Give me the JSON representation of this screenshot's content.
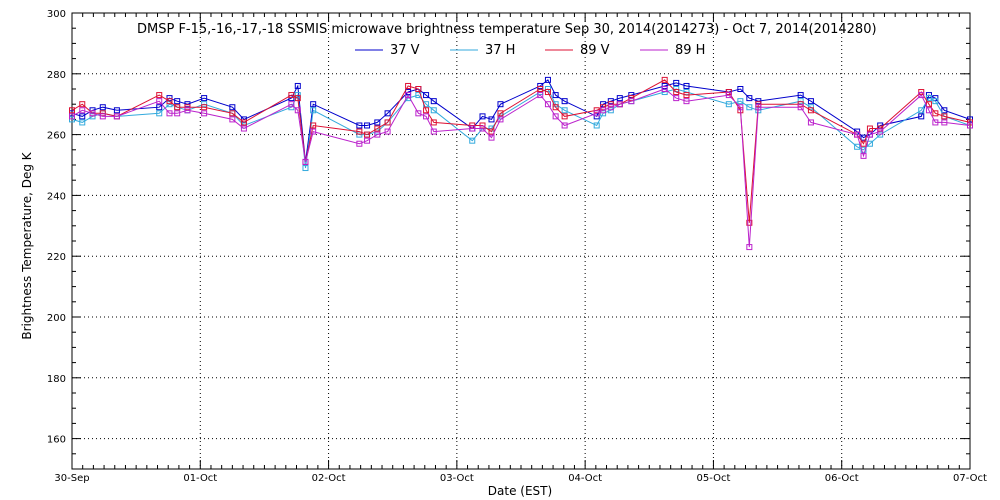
{
  "chart_data": {
    "type": "line",
    "title": "DMSP F-15,-16,-17,-18 SSMIS microwave brightness temperature Sep 30, 2014(2014273) - Oct  7, 2014(2014280)",
    "xlabel": "Date (EST)",
    "ylabel": "Brightness Temperature, Deg K",
    "x_tick_labels": [
      "30-Sep",
      "01-Oct",
      "02-Oct",
      "03-Oct",
      "04-Oct",
      "05-Oct",
      "06-Oct",
      "07-Oct"
    ],
    "xlim_days": [
      0,
      7
    ],
    "ylim": [
      150,
      300
    ],
    "y_ticks": [
      160,
      180,
      200,
      220,
      240,
      260,
      280,
      300
    ],
    "grid": true,
    "legend_placement": "top-center",
    "series": [
      {
        "name": "37 V",
        "color": "#0000cc",
        "x": [
          0.0,
          0.08,
          0.16,
          0.24,
          0.35,
          0.68,
          0.76,
          0.82,
          0.9,
          1.03,
          1.25,
          1.34,
          1.71,
          1.76,
          1.82,
          1.88,
          2.24,
          2.3,
          2.38,
          2.46,
          2.62,
          2.7,
          2.76,
          2.82,
          3.12,
          3.2,
          3.27,
          3.34,
          3.65,
          3.71,
          3.77,
          3.84,
          4.09,
          4.14,
          4.2,
          4.27,
          4.36,
          4.62,
          4.71,
          4.79,
          5.12,
          5.21,
          5.28,
          5.35,
          5.68,
          5.76,
          6.12,
          6.17,
          6.22,
          6.3,
          6.62,
          6.68,
          6.73,
          6.8,
          7.0
        ],
        "values": [
          267,
          266,
          268,
          269,
          268,
          269,
          272,
          271,
          270,
          272,
          269,
          265,
          272,
          276,
          251,
          270,
          263,
          263,
          264,
          267,
          274,
          275,
          273,
          271,
          262,
          266,
          265,
          270,
          276,
          278,
          273,
          271,
          266,
          270,
          271,
          272,
          273,
          276,
          277,
          276,
          274,
          275,
          272,
          271,
          273,
          271,
          261,
          259,
          260,
          263,
          266,
          273,
          272,
          268,
          265
        ]
      },
      {
        "name": "37 H",
        "color": "#33aadd",
        "x": [
          0.0,
          0.08,
          0.16,
          0.24,
          0.35,
          0.68,
          0.76,
          0.82,
          0.9,
          1.03,
          1.25,
          1.34,
          1.71,
          1.76,
          1.82,
          1.88,
          2.24,
          2.3,
          2.38,
          2.46,
          2.62,
          2.7,
          2.76,
          2.82,
          3.12,
          3.2,
          3.27,
          3.34,
          3.65,
          3.71,
          3.77,
          3.84,
          4.09,
          4.14,
          4.2,
          4.27,
          4.36,
          4.62,
          4.71,
          4.79,
          5.12,
          5.21,
          5.28,
          5.35,
          5.68,
          5.76,
          6.12,
          6.17,
          6.22,
          6.3,
          6.62,
          6.68,
          6.73,
          6.8,
          7.0
        ],
        "values": [
          265,
          264,
          266,
          267,
          266,
          267,
          270,
          269,
          268,
          270,
          267,
          263,
          269,
          273,
          249,
          268,
          260,
          260,
          261,
          264,
          272,
          273,
          270,
          268,
          258,
          262,
          262,
          266,
          274,
          275,
          270,
          268,
          263,
          267,
          268,
          270,
          271,
          274,
          275,
          274,
          270,
          271,
          269,
          268,
          271,
          269,
          256,
          255,
          257,
          260,
          268,
          272,
          271,
          266,
          263
        ]
      },
      {
        "name": "89 V",
        "color": "#dd1133",
        "x": [
          0.0,
          0.08,
          0.16,
          0.24,
          0.35,
          0.68,
          0.76,
          0.82,
          0.9,
          1.03,
          1.25,
          1.34,
          1.71,
          1.76,
          1.82,
          1.88,
          2.24,
          2.3,
          2.38,
          2.46,
          2.62,
          2.7,
          2.76,
          2.82,
          3.12,
          3.2,
          3.27,
          3.34,
          3.65,
          3.71,
          3.77,
          3.84,
          4.09,
          4.14,
          4.2,
          4.27,
          4.36,
          4.62,
          4.71,
          4.79,
          5.12,
          5.21,
          5.28,
          5.35,
          5.68,
          5.76,
          6.12,
          6.17,
          6.22,
          6.3,
          6.62,
          6.68,
          6.73,
          6.8,
          7.0
        ],
        "values": [
          268,
          270,
          267,
          267,
          266,
          273,
          271,
          269,
          269,
          269,
          267,
          264,
          273,
          272,
          251,
          263,
          261,
          260,
          262,
          264,
          276,
          275,
          268,
          264,
          263,
          263,
          261,
          267,
          275,
          274,
          269,
          266,
          268,
          269,
          270,
          270,
          272,
          278,
          274,
          273,
          274,
          268,
          231,
          270,
          270,
          268,
          260,
          257,
          262,
          262,
          274,
          270,
          267,
          266,
          264
        ]
      },
      {
        "name": "89 H",
        "color": "#bb22cc",
        "x": [
          0.0,
          0.08,
          0.16,
          0.24,
          0.35,
          0.68,
          0.76,
          0.82,
          0.9,
          1.03,
          1.25,
          1.34,
          1.71,
          1.76,
          1.82,
          1.88,
          2.24,
          2.3,
          2.38,
          2.46,
          2.62,
          2.7,
          2.76,
          2.82,
          3.12,
          3.2,
          3.27,
          3.34,
          3.65,
          3.71,
          3.77,
          3.84,
          4.09,
          4.14,
          4.2,
          4.27,
          4.36,
          4.62,
          4.71,
          4.79,
          5.12,
          5.21,
          5.28,
          5.35,
          5.68,
          5.76,
          6.12,
          6.17,
          6.22,
          6.3,
          6.62,
          6.68,
          6.73,
          6.8,
          7.0
        ],
        "values": [
          266,
          268,
          267,
          266,
          266,
          271,
          267,
          267,
          268,
          267,
          265,
          262,
          270,
          268,
          251,
          261,
          257,
          258,
          260,
          261,
          273,
          267,
          266,
          261,
          262,
          262,
          259,
          265,
          273,
          270,
          266,
          263,
          267,
          268,
          269,
          270,
          271,
          275,
          272,
          271,
          273,
          269,
          223,
          269,
          269,
          264,
          260,
          253,
          260,
          261,
          273,
          268,
          264,
          264,
          263
        ]
      }
    ]
  }
}
